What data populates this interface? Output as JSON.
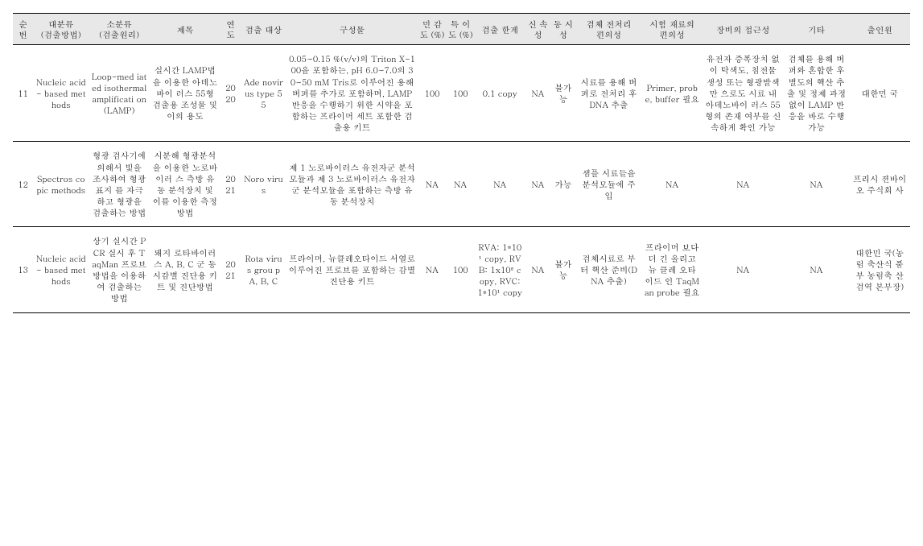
{
  "columns": {
    "seq": "순\n번",
    "major": "대분류\n(검출방법)",
    "minor": "소분류\n(검출원리)",
    "title": "제목",
    "year": "연\n도",
    "target": "검출\n대상",
    "comp": "구성물",
    "sens": "민\n감\n도\n(%)",
    "spec": "특\n이\n도\n(%)",
    "limit": "검출\n한계",
    "rapid": "신\n속\n성",
    "simul": "동\n시\n성",
    "preprc": "검체\n전처리\n편의성",
    "reag": "시험\n재료의\n편의성",
    "equip": "장비의\n접근성",
    "etc": "기타",
    "app": "출인원"
  },
  "rows": [
    {
      "seq": "11",
      "major": "Nucleic\nacid-\nbased\nmethods",
      "minor": "Loop-med\niated\nisothermal\namplificati\non\n(LAMP)",
      "title": "실시간\nLAMP법을\n이용한\n아데노바이\n러스 55형\n검출용\n조성물 및\n이의 용도",
      "year": "20\n20",
      "target": "Ade\nnovir\nus\ntype\n55",
      "comp": "0.05~0.15 %(v/v)의\nTriton X-100을\n포함하는, pH\n6.0~7.0의 30~50 mM\nTris로 이루어진\n용해 버퍼를 추가로\n포함하며, LAMP\n반응을 수행하기\n위한 시약을\n포함하는 프라이머\n세트 포함한 검출용\n키트",
      "sens": "100",
      "spec": "100",
      "limit": "0.1\ncopy",
      "rapid": "NA",
      "simul": "불가\n능",
      "preprc": "시료를\n용해\n버퍼로\n전처리 후\nDNA 추출",
      "reag": "Primer,\nprobe,\nbuffer\n필요",
      "equip": "유전자\n증폭장치\n없이\n탁색도,\n침전물\n생성 또는\n형광발색만\n으로도\n시료 내\n아데노바이\n러스\n55형의\n존재\n여부를\n신속하게\n확인 가능",
      "etc": "검체를\n용해\n버퍼와\n혼합한\n후\n별도의\n핵산\n추출 및\n정제\n과정\n없이\nLAMP\n반응을\n바로\n수행\n가능",
      "app": "대한민\n국"
    },
    {
      "seq": "12",
      "major": "Spectros\ncopic\nmethods",
      "minor": "형광\n검사기에\n의해서\n빛을\n조사하여\n형광표지\n를\n자극하고\n형광을\n검출하는\n방법",
      "title": "시분해\n형광분석을\n이용한\n노로바이러\n스 측방\n유동\n분석장치\n및 이를\n이용한\n측정방법",
      "year": "20\n21",
      "target": "Noro\nvirus",
      "comp": "제 1 노로바이러스\n유전자군 분석모듈과\n제 3 노로바이러스\n유전자군 분석모듈을\n포함하는 측방 유동\n분석장치",
      "sens": "NA",
      "spec": "NA",
      "limit": "NA",
      "rapid": "NA",
      "simul": "가능",
      "preprc": "샘플\n시료들을\n분석모듈에\n주입",
      "reag": "NA",
      "equip": "NA",
      "etc": "NA",
      "app": "프리시\n젼바이\n오\n주식회\n사"
    },
    {
      "seq": "13",
      "major": "Nucleic\nacid-\nbased\nmethods",
      "minor": "상기\n실시간\nPCR 실시\n후\nTaqMan\n프로브\n방법을\n이용하여\n검출하는\n방법",
      "title": "돼지\n로타바이러\n스 A, B, C\n군\n동시감별\n진단용\n키트 및\n진단방법",
      "year": "20\n21",
      "target": "Rota\nvirus\ngrou\np A,\nB, C",
      "comp": "프라이머,\n뉴클레오타이드\n서열로 이루어진\n프로브를 포함하는\n감별진단용 키트",
      "sens": "NA",
      "spec": "100",
      "limit": "RVA:\n1*10¹\ncopy,\nRVB:\n1x10²\ncopy,\nRVC:\n1*10¹\ncopy",
      "rapid": "NA",
      "simul": "불가\n능",
      "preprc": "검체시료로\n부터 핵산\n준비(DNA\n추출)",
      "reag": "프라이머\n보다 더\n긴\n올리고뉴\n클레\n오타이드\n인\nTaqMan\nprobe\n필요",
      "equip": "NA",
      "etc": "NA",
      "app": "대한민\n국(농림\n축산식\n품부\n농림축\n산검역\n본부장)"
    }
  ]
}
